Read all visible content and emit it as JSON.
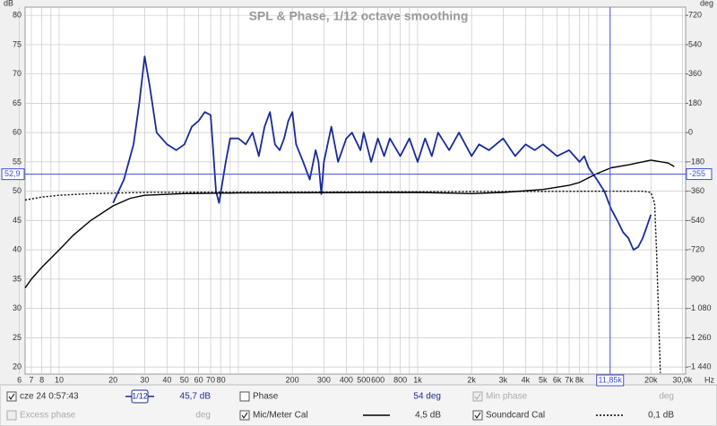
{
  "chart_data": {
    "type": "line",
    "title": "SPL & Phase, 1/12 octave smoothing",
    "y_unit": "dB",
    "y2_unit": "deg",
    "x_unit": "Hz",
    "x_scale": "log",
    "xlim": [
      6.46,
      31260
    ],
    "ylim": [
      18.8,
      81.4
    ],
    "y2lim": [
      -1483,
      770.4
    ],
    "grid": true,
    "yticks": [
      20,
      25,
      30,
      35,
      40,
      45,
      50,
      55,
      60,
      65,
      70,
      75,
      80
    ],
    "y2ticks": [
      720,
      540,
      360,
      180,
      0,
      -180,
      -360,
      -540,
      -720,
      -900,
      {
        "value": -1080,
        "label": "-1 080"
      },
      {
        "value": -1260,
        "label": "-1 260"
      },
      {
        "value": -1440,
        "label": "-1 440"
      }
    ],
    "xticks": [
      6,
      7,
      8,
      10,
      20,
      30,
      40,
      50,
      60,
      70,
      80,
      200,
      300,
      400,
      500,
      600,
      800,
      {
        "value": 1000,
        "label": "1k"
      },
      {
        "value": 2000,
        "label": "2k"
      },
      {
        "value": 3000,
        "label": "3k"
      },
      {
        "value": 4000,
        "label": "4k"
      },
      {
        "value": 5000,
        "label": "5k"
      },
      {
        "value": 6000,
        "label": "6k"
      },
      {
        "value": 7000,
        "label": "7k"
      },
      {
        "value": 8000,
        "label": "8k"
      },
      {
        "value": 20000,
        "label": "20k"
      },
      {
        "value": 30000,
        "label": "30,0k"
      }
    ],
    "x_minor_grid": [
      9,
      90,
      100,
      700,
      900,
      9000,
      10000
    ],
    "cursor": {
      "x": 11850,
      "x_label": "11,85k",
      "y": 52.9,
      "y_label": "52,9",
      "y2": -255,
      "color": "#3b4fd8"
    },
    "series": [
      {
        "name": "cze 24 0:57:43",
        "color": "#1a2a9a",
        "readout": "45,7 dB",
        "smoothing": "1/12",
        "x": [
          20,
          23,
          26,
          28,
          30,
          32,
          35,
          40,
          45,
          50,
          55,
          60,
          65,
          70,
          72,
          75,
          78,
          85,
          90,
          100,
          110,
          120,
          130,
          140,
          150,
          160,
          170,
          180,
          190,
          200,
          210,
          230,
          250,
          270,
          280,
          290,
          300,
          330,
          360,
          400,
          430,
          480,
          500,
          550,
          600,
          650,
          700,
          800,
          900,
          1000,
          1100,
          1200,
          1300,
          1500,
          1700,
          2000,
          2200,
          2500,
          3000,
          3500,
          4000,
          4500,
          5000,
          6000,
          7000,
          8000,
          8500,
          9000,
          10000,
          11000,
          12000,
          13000,
          14000,
          15000,
          16000,
          17000,
          18000,
          19000,
          20000
        ],
        "values": [
          48,
          52,
          58,
          65,
          73,
          68,
          60,
          58,
          57,
          58,
          61,
          62,
          63.5,
          63,
          58,
          50,
          48,
          55,
          59,
          59,
          58,
          60,
          56,
          61,
          63.5,
          58,
          57,
          59,
          62,
          63.5,
          58,
          55,
          52,
          57,
          55,
          49.5,
          55,
          61,
          55,
          59,
          60,
          57,
          60,
          55,
          59,
          56,
          59,
          56,
          59,
          55,
          59,
          56,
          60,
          57,
          60,
          56,
          58,
          57,
          59,
          56,
          58,
          57,
          58,
          56,
          57,
          55,
          56,
          54,
          52,
          50,
          47,
          45,
          43,
          42,
          40,
          40.5,
          42,
          44,
          46
        ]
      },
      {
        "name": "Mic/Meter Cal",
        "color": "#000000",
        "readout": "4,5 dB",
        "dash": "solid",
        "x": [
          6.46,
          7,
          8,
          10,
          12,
          15,
          20,
          25,
          30,
          50,
          100,
          1000,
          2000,
          3000,
          5000,
          7000,
          8000,
          10000,
          12000,
          15000,
          20000,
          25000,
          27000
        ],
        "values": [
          33.5,
          35,
          37,
          40,
          42.5,
          45,
          47.5,
          48.8,
          49.3,
          49.6,
          49.7,
          49.8,
          49.6,
          49.8,
          50.3,
          51,
          51.5,
          53,
          54,
          54.5,
          55.3,
          54.8,
          54.2
        ]
      },
      {
        "name": "Soundcard Cal",
        "color": "#000000",
        "readout": "0,1 dB",
        "dash": "dotted",
        "x": [
          6.46,
          8,
          10,
          15,
          30,
          1000,
          10000,
          18000,
          20000,
          21000,
          21500,
          22600
        ],
        "values": [
          48.5,
          49,
          49.3,
          49.6,
          49.8,
          49.9,
          50,
          50,
          49.8,
          48,
          40,
          19
        ]
      }
    ],
    "phase": {
      "label": "Phase",
      "readout": "54 deg"
    },
    "min_phase": {
      "label": "Min phase",
      "readout": "deg"
    },
    "excess_phase": {
      "label": "Excess phase",
      "readout": "deg"
    }
  }
}
